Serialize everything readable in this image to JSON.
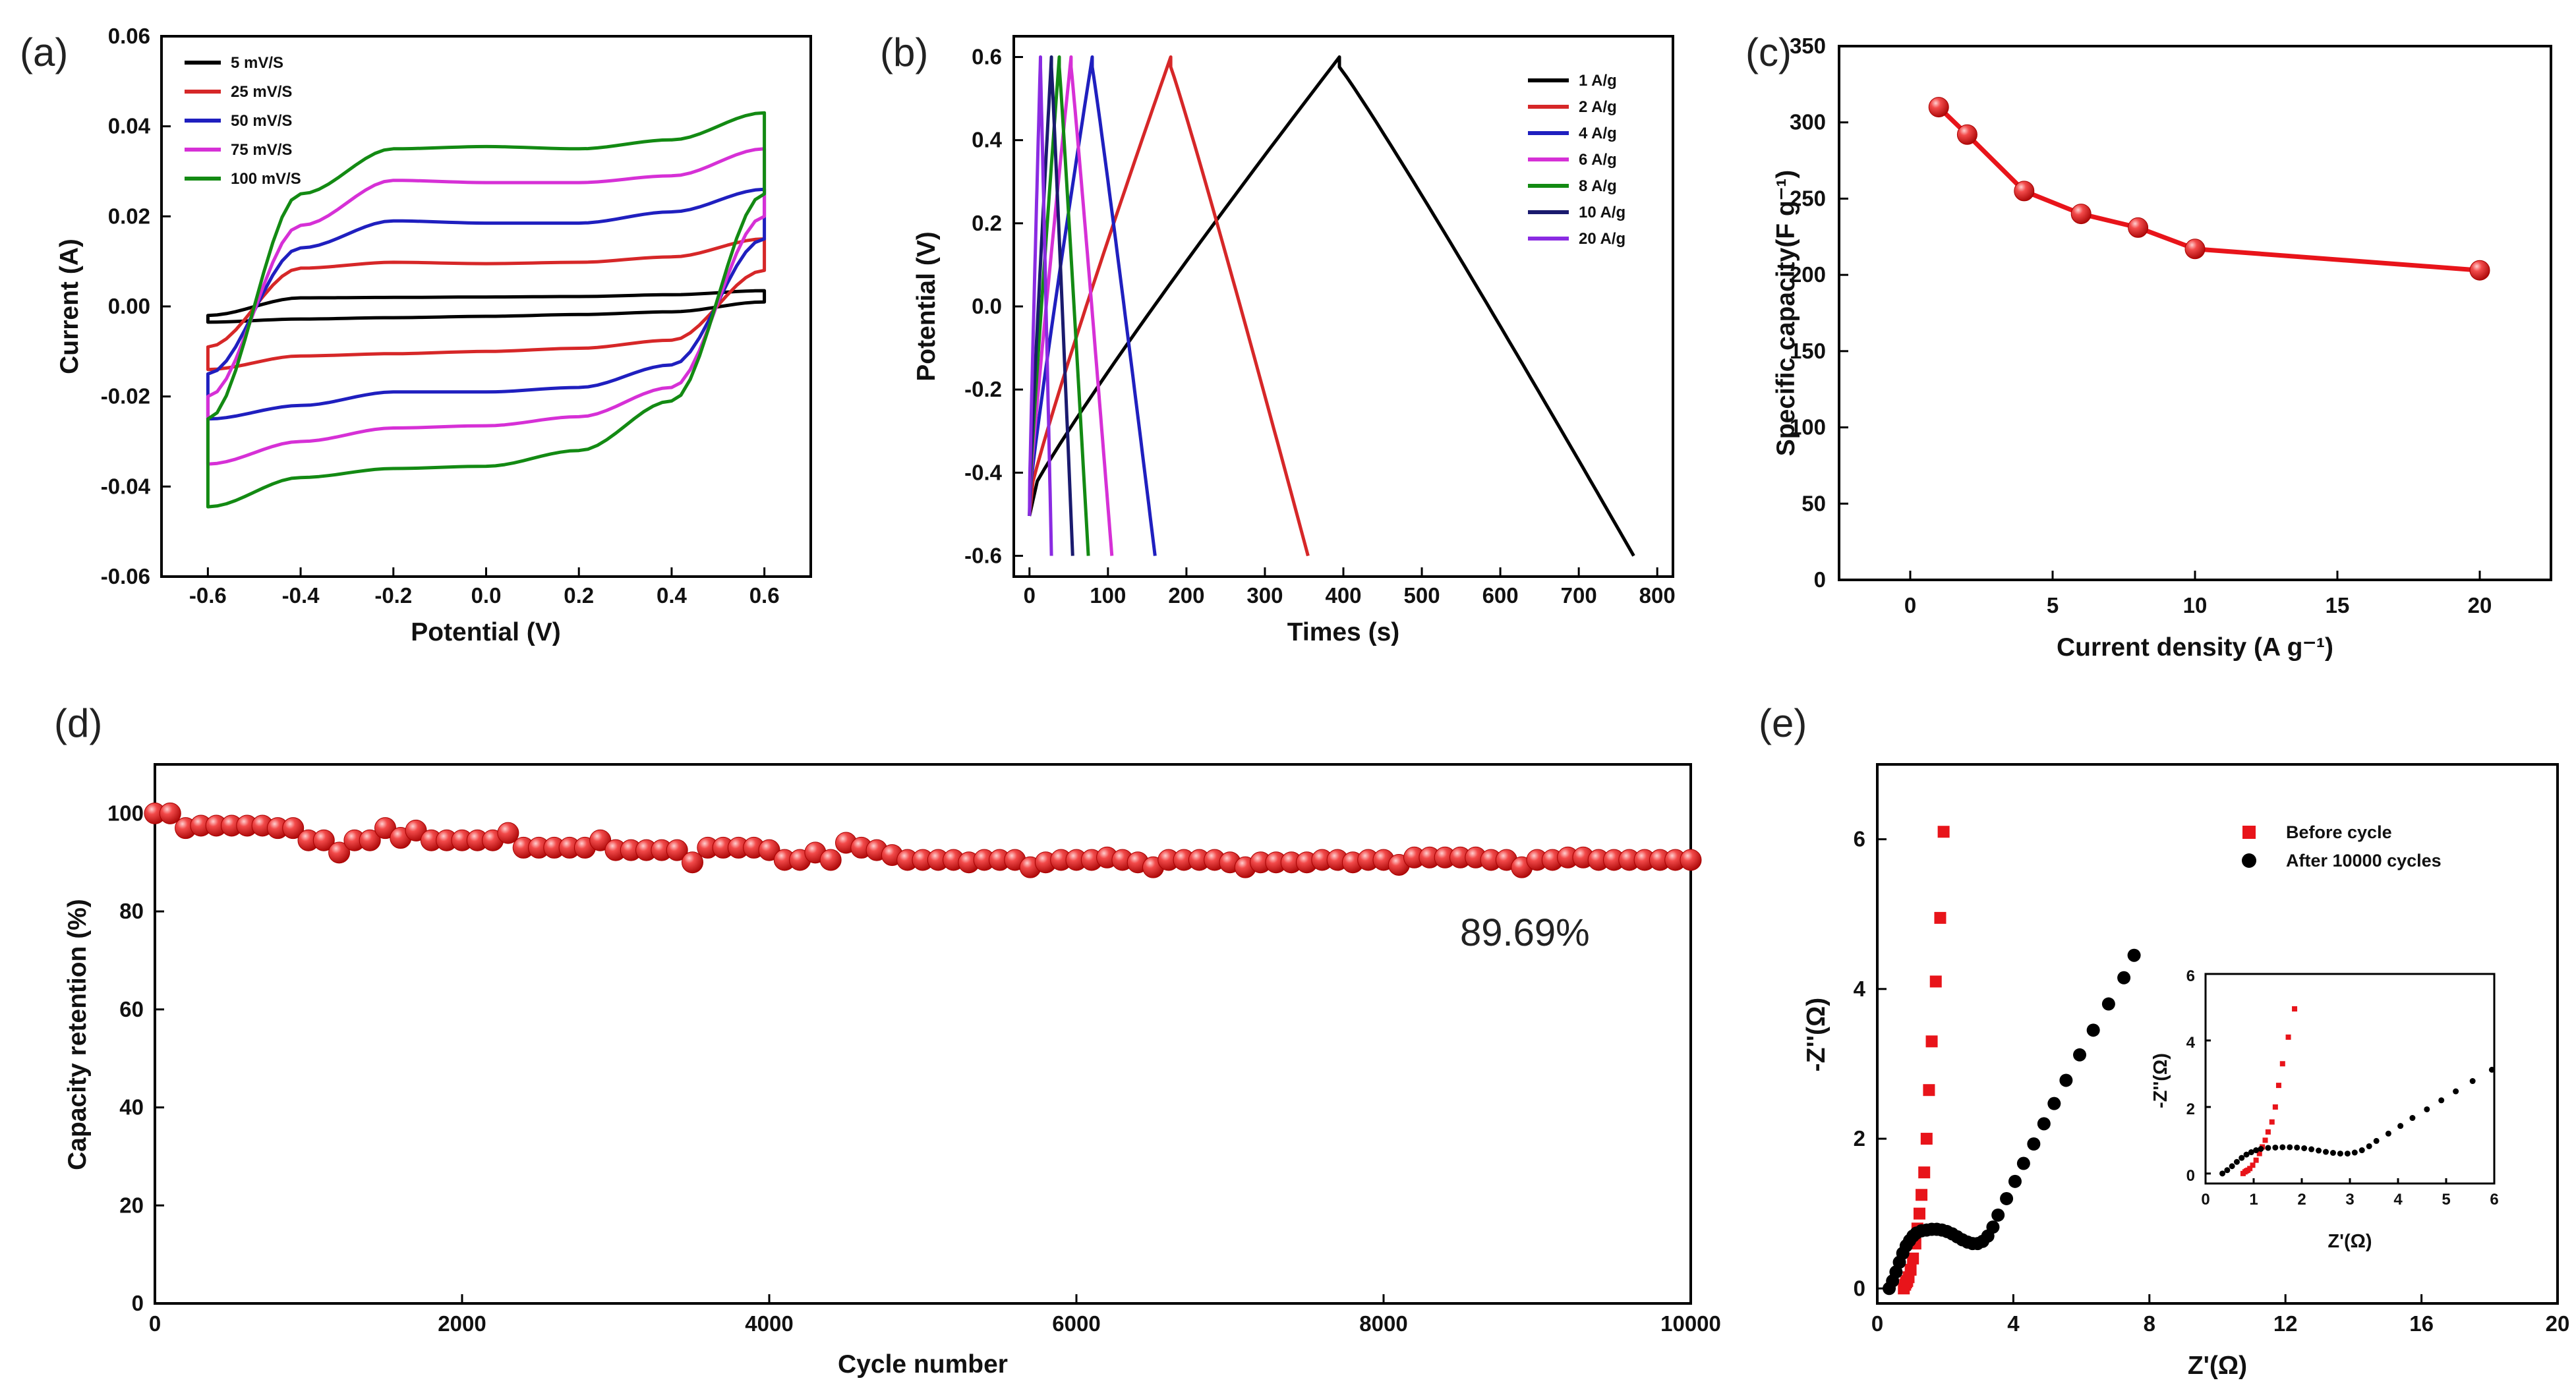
{
  "chart_data": [
    {
      "id": "a",
      "panel_label": "(a)",
      "type": "line",
      "xlabel": "Potential (V)",
      "ylabel": "Current (A)",
      "xlim": [
        -0.7,
        0.7
      ],
      "ylim": [
        -0.06,
        0.06
      ],
      "xticks": [
        "-0.6",
        "-0.4",
        "-0.2",
        "0.0",
        "0.2",
        "0.4",
        "0.6"
      ],
      "yticks": [
        "-0.06",
        "-0.04",
        "-0.02",
        "0.00",
        "0.02",
        "0.04",
        "0.06"
      ],
      "legend_position": "top-left",
      "series": [
        {
          "name": "5 mV/S",
          "color": "#000000",
          "upper_values": [
            -0.002,
            0.0019,
            0.002,
            0.0021,
            0.0022,
            0.0026,
            0.0035
          ],
          "lower_values": [
            -0.0035,
            -0.0028,
            -0.0025,
            -0.0022,
            -0.0018,
            -0.0012,
            0.001
          ]
        },
        {
          "name": "25 mV/S",
          "color": "#d62728",
          "upper_values": [
            -0.009,
            0.0085,
            0.0098,
            0.0095,
            0.0098,
            0.011,
            0.015
          ],
          "lower_values": [
            -0.014,
            -0.011,
            -0.0105,
            -0.01,
            -0.0093,
            -0.0075,
            0.008
          ]
        },
        {
          "name": "50 mV/S",
          "color": "#1f1fbf",
          "upper_values": [
            -0.015,
            0.013,
            0.019,
            0.0185,
            0.0185,
            0.021,
            0.026
          ],
          "lower_values": [
            -0.025,
            -0.022,
            -0.019,
            -0.019,
            -0.018,
            -0.013,
            0.015
          ]
        },
        {
          "name": "75 mV/S",
          "color": "#d630d6",
          "upper_values": [
            -0.02,
            0.018,
            0.028,
            0.0275,
            0.0275,
            0.029,
            0.035
          ],
          "lower_values": [
            -0.035,
            -0.03,
            -0.027,
            -0.0265,
            -0.0245,
            -0.018,
            0.02
          ]
        },
        {
          "name": "100 mV/S",
          "color": "#138a13",
          "upper_values": [
            -0.025,
            0.025,
            0.035,
            0.0355,
            0.035,
            0.037,
            0.043
          ],
          "lower_values": [
            -0.0445,
            -0.038,
            -0.036,
            -0.0355,
            -0.032,
            -0.021,
            0.025
          ]
        }
      ]
    },
    {
      "id": "b",
      "panel_label": "(b)",
      "type": "line",
      "xlabel": "Times (s)",
      "ylabel": "Potential (V)",
      "xlim": [
        -20,
        820
      ],
      "ylim": [
        -0.65,
        0.65
      ],
      "xticks": [
        "0",
        "100",
        "200",
        "300",
        "400",
        "500",
        "600",
        "700",
        "800"
      ],
      "yticks": [
        "-0.6",
        "-0.4",
        "-0.2",
        "0.0",
        "0.2",
        "0.4",
        "0.6"
      ],
      "legend_position": "top-right",
      "series": [
        {
          "name": "1 A/g",
          "color": "#000000",
          "charge_time": 395,
          "discharge_time": 770
        },
        {
          "name": "2 A/g",
          "color": "#d62728",
          "charge_time": 180,
          "discharge_time": 355
        },
        {
          "name": "4 A/g",
          "color": "#1f1fbf",
          "charge_time": 80,
          "discharge_time": 160
        },
        {
          "name": "6 A/g",
          "color": "#d630d6",
          "charge_time": 53,
          "discharge_time": 105
        },
        {
          "name": "8 A/g",
          "color": "#138a13",
          "charge_time": 38,
          "discharge_time": 75
        },
        {
          "name": "10 A/g",
          "color": "#1a1a6e",
          "charge_time": 28,
          "discharge_time": 55
        },
        {
          "name": "20 A/g",
          "color": "#8a2be2",
          "charge_time": 14,
          "discharge_time": 28
        }
      ],
      "voltage_window": [
        -0.6,
        0.6
      ]
    },
    {
      "id": "c",
      "panel_label": "(c)",
      "type": "line",
      "xlabel": "Current density (A g⁻¹)",
      "ylabel": "Specific capacity(F g⁻¹)",
      "xlim": [
        -2.5,
        22.5
      ],
      "ylim": [
        0,
        350
      ],
      "xticks": [
        "0",
        "5",
        "10",
        "15",
        "20"
      ],
      "yticks": [
        "0",
        "50",
        "100",
        "150",
        "200",
        "250",
        "300",
        "350"
      ],
      "x": [
        1,
        2,
        4,
        6,
        8,
        10,
        20
      ],
      "values": [
        310,
        292,
        255,
        240,
        231,
        217,
        203
      ],
      "color": "#e8141a"
    },
    {
      "id": "d",
      "panel_label": "(d)",
      "type": "scatter",
      "xlabel": "Cycle number",
      "ylabel": "Capacity retention (%)",
      "xlim": [
        0,
        10000
      ],
      "ylim": [
        0,
        110
      ],
      "xticks": [
        "0",
        "2000",
        "4000",
        "6000",
        "8000",
        "10000"
      ],
      "yticks": [
        "0",
        "20",
        "40",
        "60",
        "80",
        "100"
      ],
      "annotation": "89.69%",
      "x_step": 100,
      "values": [
        100,
        100,
        97,
        97.5,
        97.5,
        97.5,
        97.5,
        97.5,
        97,
        97,
        94.5,
        94.5,
        92,
        94.5,
        94.5,
        97,
        95,
        96.5,
        94.5,
        94.5,
        94.5,
        94.5,
        94.5,
        96,
        93,
        93,
        93,
        93,
        93,
        94.5,
        92.5,
        92.5,
        92.5,
        92.5,
        92.5,
        90,
        93,
        93,
        93,
        93,
        92.5,
        90.5,
        90.5,
        92,
        90.5,
        94,
        93,
        92.5,
        91.5,
        90.5,
        90.5,
        90.5,
        90.5,
        90,
        90.5,
        90.5,
        90.5,
        89,
        90,
        90.5,
        90.5,
        90.5,
        91,
        90.5,
        90,
        89,
        90.5,
        90.5,
        90.5,
        90.5,
        90,
        89,
        90,
        90,
        90,
        90,
        90.5,
        90.5,
        90,
        90.5,
        90.5,
        89.5,
        91,
        91,
        91,
        91,
        91,
        90.5,
        90.5,
        89,
        90.5,
        90.5,
        91,
        91,
        90.5,
        90.5,
        90.5,
        90.5,
        90.5,
        90.5,
        90.5
      ],
      "color": "#e8141a"
    },
    {
      "id": "e",
      "panel_label": "(e)",
      "type": "scatter",
      "xlabel": "Z'(Ω)",
      "ylabel": "-Z''(Ω)",
      "xlim": [
        0,
        20
      ],
      "ylim": [
        -0.2,
        7
      ],
      "xticks": [
        "0",
        "4",
        "8",
        "12",
        "16",
        "20"
      ],
      "yticks": [
        "0",
        "2",
        "4",
        "6"
      ],
      "series": [
        {
          "name": "Before cycle",
          "color": "#e8141a",
          "marker": "square",
          "x": [
            0.78,
            0.82,
            0.85,
            0.88,
            0.92,
            0.98,
            1.05,
            1.12,
            1.18,
            1.24,
            1.3,
            1.38,
            1.45,
            1.52,
            1.6,
            1.72,
            1.85,
            1.95
          ],
          "y": [
            0,
            0.05,
            0.08,
            0.1,
            0.15,
            0.25,
            0.4,
            0.6,
            0.8,
            1.0,
            1.25,
            1.55,
            2.0,
            2.65,
            3.3,
            4.1,
            4.95,
            6.1
          ]
        },
        {
          "name": "After 10000 cycles",
          "color": "#000000",
          "marker": "circle",
          "x": [
            0.35,
            0.45,
            0.55,
            0.65,
            0.75,
            0.85,
            0.95,
            1.05,
            1.15,
            1.3,
            1.45,
            1.6,
            1.75,
            1.9,
            2.05,
            2.2,
            2.35,
            2.5,
            2.65,
            2.8,
            2.95,
            3.1,
            3.25,
            3.4,
            3.55,
            3.8,
            4.05,
            4.3,
            4.6,
            4.9,
            5.2,
            5.55,
            5.95,
            6.35,
            6.8,
            7.25,
            7.55
          ],
          "y": [
            0,
            0.1,
            0.22,
            0.35,
            0.47,
            0.57,
            0.64,
            0.7,
            0.74,
            0.77,
            0.78,
            0.79,
            0.79,
            0.78,
            0.76,
            0.73,
            0.69,
            0.65,
            0.62,
            0.6,
            0.6,
            0.63,
            0.7,
            0.82,
            0.98,
            1.2,
            1.43,
            1.67,
            1.93,
            2.2,
            2.47,
            2.78,
            3.12,
            3.45,
            3.8,
            4.15,
            4.45
          ]
        }
      ],
      "inset": {
        "xlim": [
          0,
          6
        ],
        "ylim": [
          -0.3,
          6
        ],
        "xticks": [
          "0",
          "1",
          "2",
          "3",
          "4",
          "5",
          "6"
        ],
        "yticks": [
          "0",
          "2",
          "4",
          "6"
        ],
        "xlabel": "Z'(Ω)",
        "ylabel": "-Z''(Ω)"
      }
    }
  ]
}
